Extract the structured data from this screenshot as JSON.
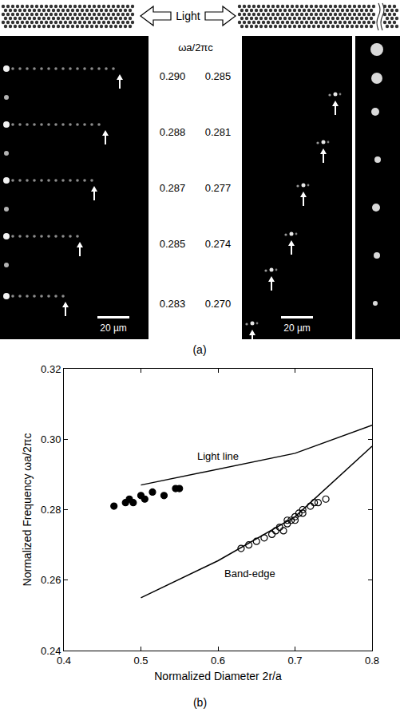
{
  "panel_a": {
    "caption": "(a)",
    "light": "Light",
    "frequency_label": "ωa/2πc",
    "left_frequencies": [
      "0.290",
      "0.288",
      "0.287",
      "0.285",
      "0.283"
    ],
    "right_frequencies": [
      "0.285",
      "0.281",
      "0.277",
      "0.274",
      "0.270"
    ],
    "scale_bar": "20 µm"
  },
  "chart_data": {
    "type": "scatter",
    "caption": "(b)",
    "x_label": "Normalized Diameter 2r/a",
    "y_label": "Normalized Frequency ωa/2πc",
    "xlim": [
      0.4,
      0.8
    ],
    "xticks": [
      0.4,
      0.5,
      0.6,
      0.7,
      0.8
    ],
    "ylim": [
      0.24,
      0.32
    ],
    "yticks": [
      0.24,
      0.26,
      0.28,
      {
        "value": 0.3,
        "label": "0.30"
      },
      0.32
    ],
    "grid": false,
    "series": [
      {
        "name": "Light line",
        "type": "line",
        "color": "#000000",
        "line_style": "solid",
        "x": [
          0.5,
          0.6,
          0.7,
          0.8
        ],
        "values": [
          0.287,
          0.2915,
          0.296,
          0.304
        ]
      },
      {
        "name": "Band-edge",
        "type": "line",
        "color": "#000000",
        "line_style": "solid",
        "x": [
          0.5,
          0.6,
          0.7,
          0.8
        ],
        "values": [
          0.255,
          0.2655,
          0.278,
          0.298
        ]
      },
      {
        "type": "scatter",
        "marker": "circle",
        "color": "#000000",
        "x": [
          0.465,
          0.48,
          0.485,
          0.49,
          0.5,
          0.505,
          0.515,
          0.53,
          0.545,
          0.55
        ],
        "values": [
          0.281,
          0.282,
          0.283,
          0.282,
          0.284,
          0.283,
          0.285,
          0.284,
          0.286,
          0.286
        ]
      },
      {
        "type": "scatter",
        "marker": "circle-open",
        "color": "#000000",
        "x": [
          0.63,
          0.64,
          0.65,
          0.66,
          0.67,
          0.675,
          0.68,
          0.685,
          0.69,
          0.69,
          0.695,
          0.7,
          0.7,
          0.705,
          0.71,
          0.71,
          0.72,
          0.725,
          0.73,
          0.74
        ],
        "values": [
          0.269,
          0.27,
          0.271,
          0.272,
          0.273,
          0.274,
          0.275,
          0.274,
          0.276,
          0.277,
          0.277,
          0.278,
          0.277,
          0.279,
          0.279,
          0.28,
          0.281,
          0.282,
          0.282,
          0.283
        ]
      }
    ]
  }
}
